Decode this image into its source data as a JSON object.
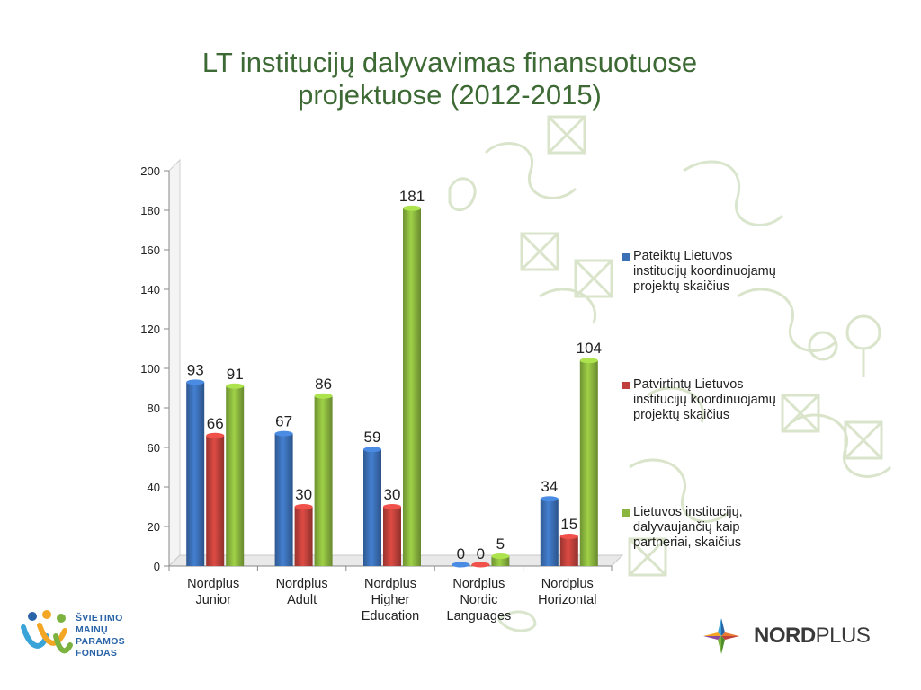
{
  "slide": {
    "title_line1": "LT institucijų dalyvavimas finansuotuose",
    "title_line2": "projektuose  (2012-2015)"
  },
  "chart_data": {
    "type": "bar",
    "categories": [
      [
        "Nordplus",
        "Junior"
      ],
      [
        "Nordplus",
        "Adult"
      ],
      [
        "Nordplus",
        "Higher",
        "Education"
      ],
      [
        "Nordplus",
        "Nordic",
        "Languages"
      ],
      [
        "Nordplus",
        "Horizontal"
      ]
    ],
    "series": [
      {
        "name": [
          "Pateiktų Lietuvos",
          "institucijų koordinuojamų",
          "projektų skaičius"
        ],
        "color": "#3b6fb6",
        "values": [
          93,
          67,
          59,
          0,
          34
        ]
      },
      {
        "name": [
          "Patvirtintų Lietuvos",
          "institucijų koordinuojamų",
          "projektų skaičius"
        ],
        "color": "#c0413b",
        "values": [
          66,
          30,
          30,
          0,
          15
        ]
      },
      {
        "name": [
          "Lietuvos institucijų,",
          "dalyvaujančių kaip",
          "partneriai, skaičius"
        ],
        "color": "#8ab63e",
        "values": [
          91,
          86,
          181,
          5,
          104
        ]
      }
    ],
    "ylim": [
      0,
      200
    ],
    "yticks": [
      "0",
      "20",
      "40",
      "60",
      "80",
      "100",
      "120",
      "140",
      "160",
      "180",
      "200"
    ],
    "legend_position": "right",
    "grid": false
  },
  "logos": {
    "left_text": [
      "ŠVIETIMO",
      "MAINŲ",
      "PARAMOS",
      "FONDAS"
    ],
    "right_text_bold": "NORD",
    "right_text_regular": "PLUS"
  }
}
